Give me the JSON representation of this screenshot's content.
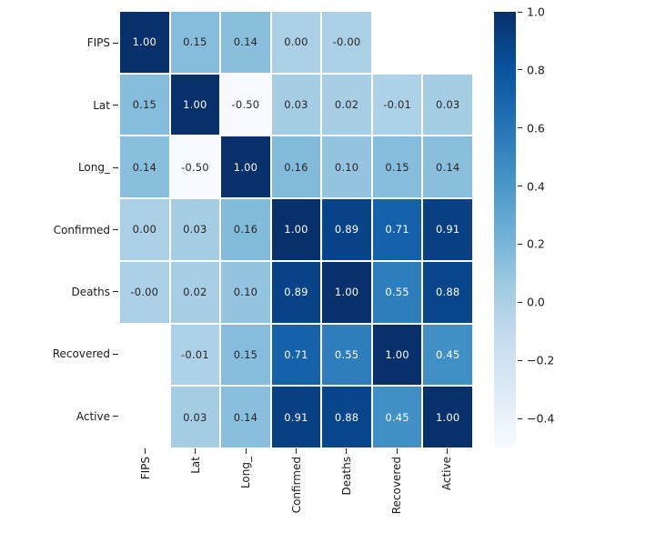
{
  "figure": {
    "background": "#ffffff",
    "label_color": "#1a1a1a",
    "tick_color": "#262626",
    "cell_gap_color": "#ffffff"
  },
  "chart_data": {
    "type": "heatmap",
    "title": "",
    "xlabel": "",
    "ylabel": "",
    "categories": [
      "FIPS",
      "Lat",
      "Long_",
      "Confirmed",
      "Deaths",
      "Recovered",
      "Active"
    ],
    "matrix": [
      [
        1.0,
        0.15,
        0.14,
        0.0,
        -0.0,
        null,
        null
      ],
      [
        0.15,
        1.0,
        -0.5,
        0.03,
        0.02,
        -0.01,
        0.03
      ],
      [
        0.14,
        -0.5,
        1.0,
        0.16,
        0.1,
        0.15,
        0.14
      ],
      [
        0.0,
        0.03,
        0.16,
        1.0,
        0.89,
        0.71,
        0.91
      ],
      [
        -0.0,
        0.02,
        0.1,
        0.89,
        1.0,
        0.55,
        0.88
      ],
      [
        null,
        -0.01,
        0.15,
        0.71,
        0.55,
        1.0,
        0.45
      ],
      [
        null,
        0.03,
        0.14,
        0.91,
        0.88,
        0.45,
        1.0
      ]
    ],
    "cell_labels": [
      [
        "1.00",
        "0.15",
        "0.14",
        "0.00",
        "-0.00",
        null,
        null
      ],
      [
        "0.15",
        "1.00",
        "-0.50",
        "0.03",
        "0.02",
        "-0.01",
        "0.03"
      ],
      [
        "0.14",
        "-0.50",
        "1.00",
        "0.16",
        "0.10",
        "0.15",
        "0.14"
      ],
      [
        "0.00",
        "0.03",
        "0.16",
        "1.00",
        "0.89",
        "0.71",
        "0.91"
      ],
      [
        "-0.00",
        "0.02",
        "0.10",
        "0.89",
        "1.00",
        "0.55",
        "0.88"
      ],
      [
        null,
        "-0.01",
        "0.15",
        "0.71",
        "0.55",
        "1.00",
        "0.45"
      ],
      [
        null,
        "0.03",
        "0.14",
        "0.91",
        "0.88",
        "0.45",
        "1.00"
      ]
    ],
    "vmin": -0.5,
    "vmax": 1.0,
    "colormap": {
      "name": "Blues",
      "anchors": [
        "#f7fbff",
        "#deebf7",
        "#c6dbef",
        "#9ecae1",
        "#6baed6",
        "#4292c6",
        "#2171b5",
        "#08519c",
        "#08306b"
      ]
    },
    "annotation_colors": {
      "on_dark": "#ffffff",
      "on_light": "#262626"
    },
    "grid": false,
    "legend_position": "colorbar-right",
    "colorbar": {
      "ticks": [
        1.0,
        0.8,
        0.6,
        0.4,
        0.2,
        0.0,
        -0.2,
        -0.4
      ],
      "tick_labels": [
        "1.0",
        "0.8",
        "0.6",
        "0.4",
        "0.2",
        "0.0",
        "−0.2",
        "−0.4"
      ]
    }
  }
}
